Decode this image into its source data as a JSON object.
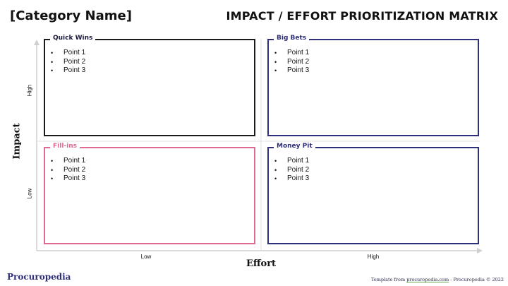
{
  "header": {
    "category": "[Category Name]",
    "title": "IMPACT / EFFORT PRIORITIZATION MATRIX"
  },
  "axes": {
    "y_title": "Impact",
    "x_title": "Effort",
    "y_high": "High",
    "y_low": "Low",
    "x_low": "Low",
    "x_high": "High"
  },
  "quadrants": {
    "quick_wins": {
      "label": "Quick Wins",
      "points": [
        "Point 1",
        "Point 2",
        "Point 3"
      ],
      "color": "#1a1a1a"
    },
    "big_bets": {
      "label": "Big Bets",
      "points": [
        "Point 1",
        "Point 2",
        "Point 3"
      ],
      "color": "#2e2f7a"
    },
    "fill_ins": {
      "label": "Fill-ins",
      "points": [
        "Point 1",
        "Point 2",
        "Point 3"
      ],
      "color": "#e06a8f"
    },
    "money_pit": {
      "label": "Money Pit",
      "points": [
        "Point 1",
        "Point 2",
        "Point 3"
      ],
      "color": "#2e2f7a"
    }
  },
  "footer": {
    "brand": "Procuropedia",
    "template_prefix": "Template from ",
    "template_link": "procuropedia.com",
    "template_suffix": " - Procuropedia © 2022"
  }
}
